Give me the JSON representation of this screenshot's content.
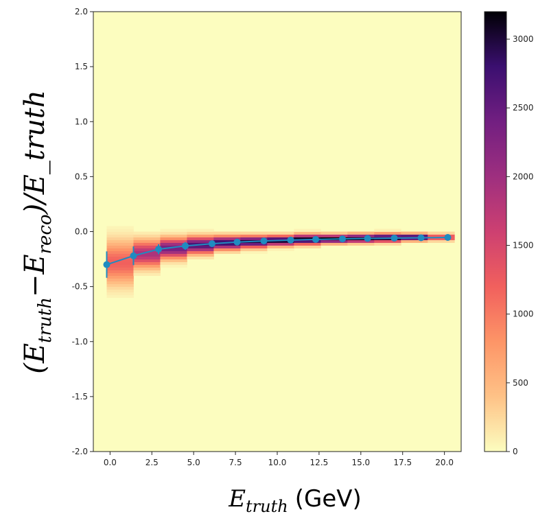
{
  "chart_data": {
    "type": "heatmap",
    "xlim": [
      -1.0,
      21.0
    ],
    "ylim": [
      -2.0,
      2.0
    ],
    "x_ticks": [
      "0.0",
      "2.5",
      "5.0",
      "7.5",
      "10.0",
      "12.5",
      "15.0",
      "17.5",
      "20.0"
    ],
    "y_ticks": [
      "2.0",
      "1.5",
      "1.0",
      "0.5",
      "0.0",
      "-0.5",
      "-1.0",
      "-1.5",
      "-2.0"
    ],
    "colorbar": {
      "colormap": "magma_r",
      "range": [
        0,
        3200
      ],
      "ticks": [
        "0",
        "500",
        "1000",
        "1500",
        "2000",
        "2500",
        "3000"
      ]
    },
    "ylabel": {
      "open": "(",
      "e1": "E",
      "s1": "truth",
      "minus": "−",
      "e2": "E",
      "s2": "reco",
      "rest": ")/E_truth"
    },
    "xlabel": {
      "e": "E",
      "sub": "truth",
      "unit": "(GeV)"
    },
    "heatmap": {
      "x_edges": [
        -0.2,
        1.4,
        3.0,
        4.6,
        6.2,
        7.8,
        9.4,
        11.0,
        12.6,
        14.2,
        15.8,
        17.4,
        19.0,
        20.6
      ],
      "columns": [
        {
          "peak": -0.28,
          "spread": 0.13,
          "max": 1200
        },
        {
          "peak": -0.2,
          "spread": 0.08,
          "max": 1900
        },
        {
          "peak": -0.15,
          "spread": 0.06,
          "max": 2400
        },
        {
          "peak": -0.12,
          "spread": 0.05,
          "max": 2700
        },
        {
          "peak": -0.1,
          "spread": 0.04,
          "max": 2900
        },
        {
          "peak": -0.09,
          "spread": 0.035,
          "max": 3000
        },
        {
          "peak": -0.08,
          "spread": 0.03,
          "max": 3100
        },
        {
          "peak": -0.07,
          "spread": 0.03,
          "max": 3150
        },
        {
          "peak": -0.065,
          "spread": 0.025,
          "max": 3200
        },
        {
          "peak": -0.06,
          "spread": 0.025,
          "max": 3150
        },
        {
          "peak": -0.055,
          "spread": 0.025,
          "max": 3150
        },
        {
          "peak": -0.05,
          "spread": 0.02,
          "max": 3100
        },
        {
          "peak": -0.05,
          "spread": 0.02,
          "max": 1500
        }
      ]
    },
    "series": [
      {
        "x": [
          -0.2,
          1.4,
          2.9,
          4.5,
          6.1,
          7.6,
          9.2,
          10.8,
          12.3,
          13.9,
          15.4,
          17.0,
          18.6,
          20.2
        ],
        "y": [
          -0.3,
          -0.22,
          -0.16,
          -0.13,
          -0.11,
          -0.095,
          -0.085,
          -0.077,
          -0.071,
          -0.066,
          -0.062,
          -0.059,
          -0.056,
          -0.053
        ],
        "yerr": [
          0.12,
          0.085,
          0.045,
          0.035,
          0.03,
          0.025,
          0.02,
          0.02,
          0.018,
          0.016,
          0.015,
          0.015,
          0.014,
          0.014
        ],
        "color": "#1f8bc0"
      }
    ],
    "background_color": "#fcfdbf"
  }
}
